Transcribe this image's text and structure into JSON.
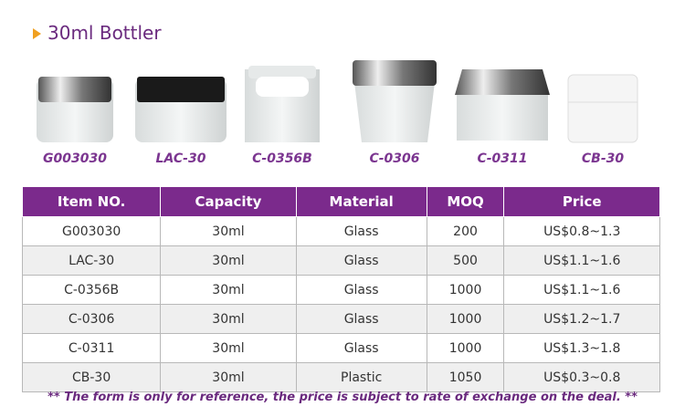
{
  "header": {
    "title": "30ml Bottler"
  },
  "products": [
    {
      "label": "G003030"
    },
    {
      "label": "LAC-30"
    },
    {
      "label": "C-0356B"
    },
    {
      "label": "C-0306"
    },
    {
      "label": "C-0311"
    },
    {
      "label": "CB-30"
    }
  ],
  "table": {
    "columns": [
      "Item NO.",
      "Capacity",
      "Material",
      "MOQ",
      "Price"
    ],
    "rows": [
      [
        "G003030",
        "30ml",
        "Glass",
        "200",
        "US$0.8~1.3"
      ],
      [
        "LAC-30",
        "30ml",
        "Glass",
        "500",
        "US$1.1~1.6"
      ],
      [
        "C-0356B",
        "30ml",
        "Glass",
        "1000",
        "US$1.1~1.6"
      ],
      [
        "C-0306",
        "30ml",
        "Glass",
        "1000",
        "US$1.2~1.7"
      ],
      [
        "C-0311",
        "30ml",
        "Glass",
        "1000",
        "US$1.3~1.8"
      ],
      [
        "CB-30",
        "30ml",
        "Plastic",
        "1050",
        "US$0.3~0.8"
      ]
    ]
  },
  "footnote": "** The form is only for reference, the price is subject to rate of exchange on the deal. **"
}
